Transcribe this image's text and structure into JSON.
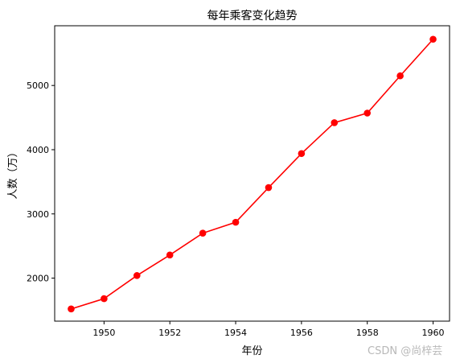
{
  "chart_data": {
    "type": "line",
    "title": "每年乘客变化趋势",
    "xlabel": "年份",
    "ylabel": "人数（万）",
    "x": [
      1949,
      1950,
      1951,
      1952,
      1953,
      1954,
      1955,
      1956,
      1957,
      1958,
      1959,
      1960
    ],
    "series": [
      {
        "values": [
          1520,
          1680,
          2040,
          2360,
          2700,
          2870,
          3410,
          3940,
          4420,
          4570,
          5150,
          5720
        ]
      }
    ],
    "xlim": [
      1948.5,
      1960.5
    ],
    "ylim": [
      1330,
      5930
    ],
    "xticks": [
      1950,
      1952,
      1954,
      1956,
      1958,
      1960
    ],
    "yticks": [
      2000,
      3000,
      4000,
      5000
    ],
    "grid": false,
    "line_color": "#ff0000",
    "marker": "circle"
  },
  "watermark": "CSDN @尚梓芸"
}
